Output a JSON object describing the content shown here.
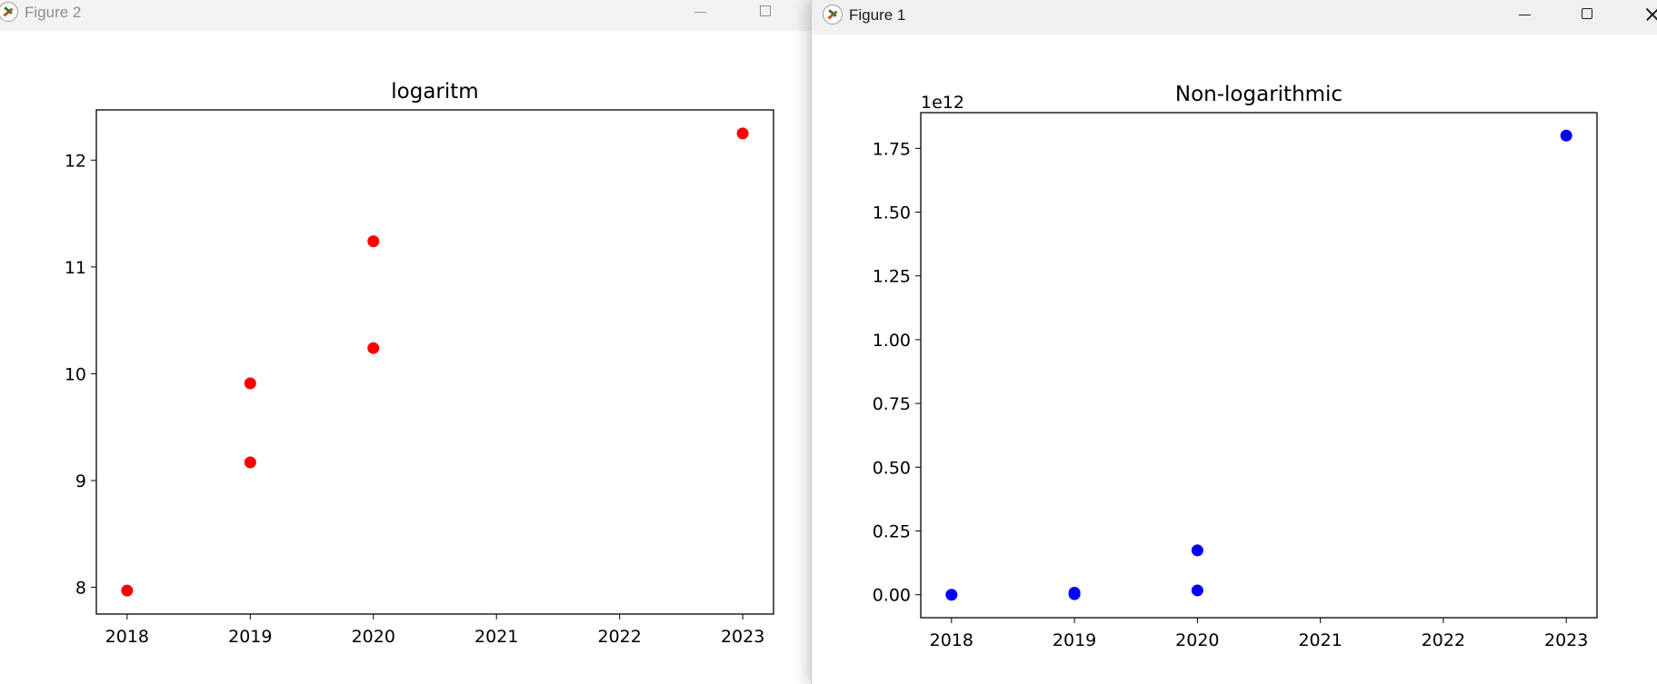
{
  "windows": {
    "figure2": {
      "title": "Figure 2"
    },
    "figure1": {
      "title": "Figure 1"
    }
  },
  "chart_data": [
    {
      "type": "scatter",
      "title": "logaritm",
      "xlabel": "",
      "ylabel": "",
      "x": [
        2018,
        2019,
        2019,
        2020,
        2020,
        2023
      ],
      "y": [
        7.97,
        9.17,
        9.91,
        10.24,
        11.24,
        12.25
      ],
      "color": "#ff0000",
      "xlim": [
        2017.75,
        2023.25
      ],
      "ylim": [
        7.75,
        12.47
      ],
      "xticks": [
        2018,
        2019,
        2020,
        2021,
        2022,
        2023
      ],
      "yticks": [
        8,
        9,
        10,
        11,
        12
      ],
      "xtick_labels": [
        "2018",
        "2019",
        "2020",
        "2021",
        "2022",
        "2023"
      ],
      "ytick_labels": [
        "8",
        "9",
        "10",
        "11",
        "12"
      ],
      "offset_label": "",
      "grid": false
    },
    {
      "type": "scatter",
      "title": "Non-logarithmic",
      "xlabel": "",
      "ylabel": "",
      "x": [
        2018,
        2019,
        2019,
        2020,
        2020,
        2023
      ],
      "y": [
        0.0,
        0.002,
        0.008,
        0.017,
        0.174,
        1.8
      ],
      "color": "#0000ff",
      "xlim": [
        2017.75,
        2023.25
      ],
      "ylim": [
        -0.09,
        1.89
      ],
      "xticks": [
        2018,
        2019,
        2020,
        2021,
        2022,
        2023
      ],
      "yticks": [
        0.0,
        0.25,
        0.5,
        0.75,
        1.0,
        1.25,
        1.5,
        1.75
      ],
      "xtick_labels": [
        "2018",
        "2019",
        "2020",
        "2021",
        "2022",
        "2023"
      ],
      "ytick_labels": [
        "0.00",
        "0.25",
        "0.50",
        "0.75",
        "1.00",
        "1.25",
        "1.50",
        "1.75"
      ],
      "offset_label": "1e12",
      "grid": false
    }
  ]
}
